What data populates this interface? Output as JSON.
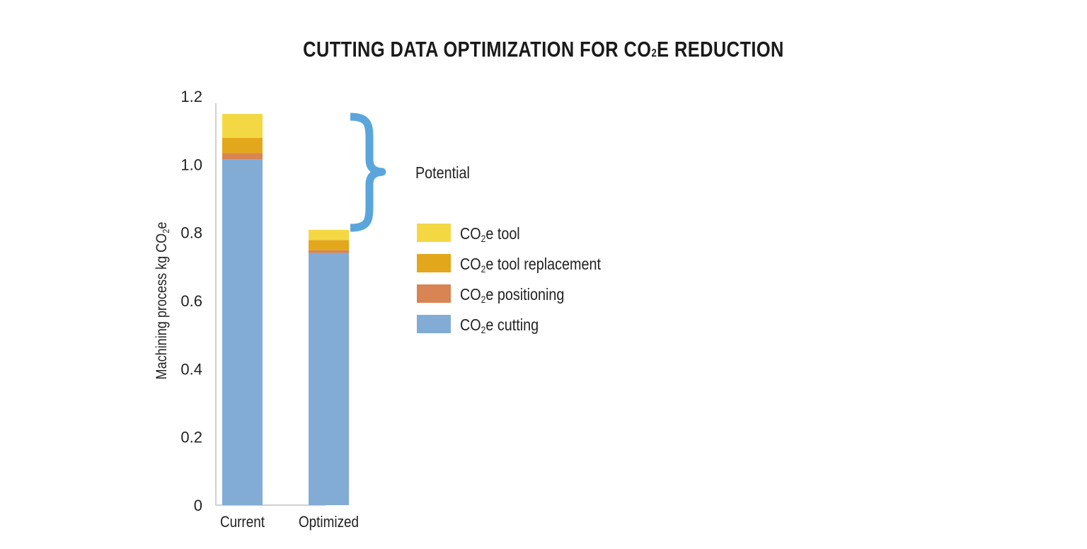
{
  "chart_data": {
    "type": "bar",
    "stacked": true,
    "title_main": "CUTTING DATA OPTIMIZATION FOR CO",
    "title_sub": "2",
    "title_tail": "E REDUCTION",
    "ylabel": "Machining process kg CO2e",
    "ylabel_main": "Machining process kg CO",
    "ylabel_sub": "2",
    "ylabel_tail": "e",
    "categories": [
      "Current",
      "Optimized"
    ],
    "ylim": [
      0,
      1.2
    ],
    "yticks": [
      "0",
      "0.2",
      "0.4",
      "0.6",
      "0.8",
      "1.0",
      "1.2"
    ],
    "ytick_values": [
      0,
      0.2,
      0.4,
      0.6,
      0.8,
      1.0,
      1.2
    ],
    "series": [
      {
        "name": "CO2e cutting",
        "label_main": "CO",
        "label_sub": "2",
        "label_tail": "e cutting",
        "color": "#82ACD6",
        "values": [
          1.015,
          0.74
        ]
      },
      {
        "name": "CO2e positioning",
        "label_main": "CO",
        "label_sub": "2",
        "label_tail": "e positioning",
        "color": "#D98453",
        "values": [
          0.018,
          0.008
        ]
      },
      {
        "name": "CO2e tool replacement",
        "label_main": "CO",
        "label_sub": "2",
        "label_tail": "e tool replacement",
        "color": "#E3A71B",
        "values": [
          0.045,
          0.03
        ]
      },
      {
        "name": "CO2e tool",
        "label_main": "CO",
        "label_sub": "2",
        "label_tail": "e tool",
        "color": "#F3D843",
        "values": [
          0.07,
          0.03
        ]
      }
    ],
    "legend_order": [
      3,
      2,
      1,
      0
    ],
    "annotation": "Potential",
    "annotation_color": "#5AA6DC",
    "axis_color": "#d0d0d0"
  }
}
